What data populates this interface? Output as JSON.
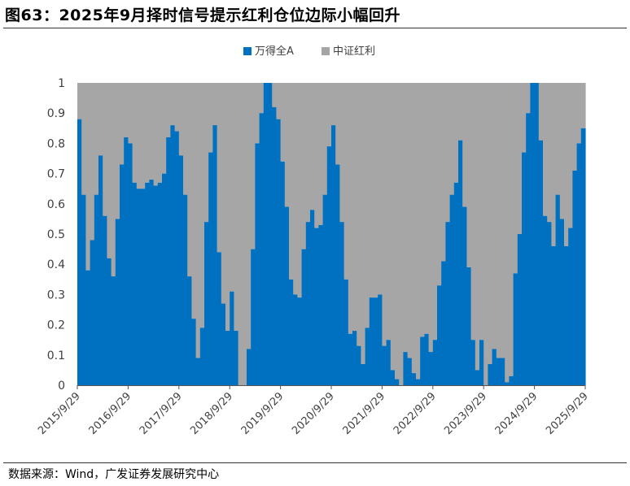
{
  "header": {
    "title": "图63：2025年9月择时信号提示红利仓位边际小幅回升"
  },
  "footer": {
    "source": "数据来源：Wind，广发证券发展研究中心"
  },
  "colors": {
    "wande": "#0070C0",
    "dividend": "#A6A6A6",
    "axis": "#555555"
  },
  "chart_data": {
    "type": "area",
    "stacked": true,
    "legend_position": "top-center",
    "grid": false,
    "ylim": [
      0,
      1
    ],
    "yticks": [
      0,
      0.1,
      0.2,
      0.3,
      0.4,
      0.5,
      0.6,
      0.7,
      0.8,
      0.9,
      1
    ],
    "ytick_labels": [
      "0",
      "0.1",
      "0.2",
      "0.3",
      "0.4",
      "0.5",
      "0.6",
      "0.7",
      "0.8",
      "0.9",
      "1"
    ],
    "xtick_labels": [
      "2015/9/29",
      "2016/9/29",
      "2017/9/29",
      "2018/9/29",
      "2019/9/29",
      "2020/9/29",
      "2021/9/29",
      "2022/9/29",
      "2023/9/29",
      "2024/9/29",
      "2025/9/29"
    ],
    "x_start": "2015/9/29",
    "x_end": "2025/9/29",
    "series": [
      {
        "name": "万得全A",
        "color": "#0070C0",
        "values": [
          0.88,
          0.63,
          0.38,
          0.48,
          0.63,
          0.76,
          0.56,
          0.42,
          0.36,
          0.55,
          0.73,
          0.82,
          0.8,
          0.67,
          0.65,
          0.65,
          0.67,
          0.68,
          0.66,
          0.67,
          0.7,
          0.82,
          0.86,
          0.84,
          0.76,
          0.63,
          0.36,
          0.22,
          0.09,
          0.19,
          0.54,
          0.77,
          0.86,
          0.44,
          0.27,
          0.18,
          0.31,
          0.18,
          0.0,
          0.0,
          0.12,
          0.45,
          0.8,
          0.9,
          1.0,
          1.0,
          0.92,
          0.88,
          0.74,
          0.59,
          0.35,
          0.3,
          0.29,
          0.45,
          0.54,
          0.58,
          0.52,
          0.53,
          0.63,
          0.79,
          0.86,
          0.73,
          0.54,
          0.35,
          0.17,
          0.18,
          0.13,
          0.07,
          0.19,
          0.29,
          0.29,
          0.3,
          0.13,
          0.15,
          0.05,
          0.02,
          0.0,
          0.11,
          0.09,
          0.04,
          0.02,
          0.16,
          0.17,
          0.11,
          0.15,
          0.33,
          0.41,
          0.54,
          0.63,
          0.67,
          0.81,
          0.59,
          0.39,
          0.15,
          0.05,
          0.15,
          0.0,
          0.07,
          0.12,
          0.09,
          0.09,
          0.01,
          0.03,
          0.37,
          0.5,
          0.77,
          0.9,
          1.0,
          1.0,
          0.81,
          0.56,
          0.54,
          0.46,
          0.63,
          0.55,
          0.46,
          0.52,
          0.71,
          0.8,
          0.85
        ]
      },
      {
        "name": "中证红利",
        "color": "#A6A6A6",
        "complement": true
      }
    ]
  }
}
